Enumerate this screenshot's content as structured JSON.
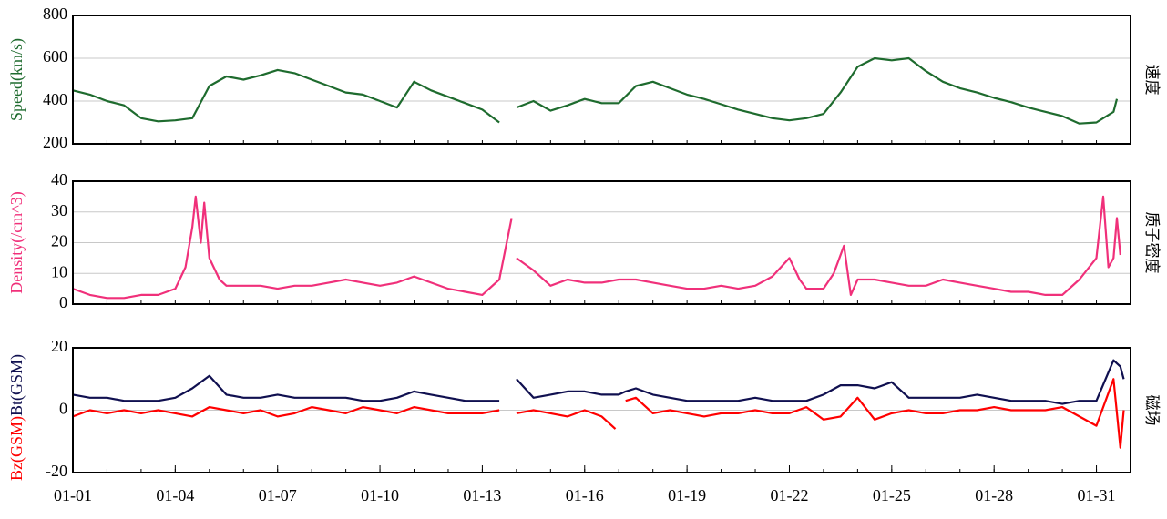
{
  "chart_data": [
    {
      "type": "line",
      "ylabel": "Speed(km/s)",
      "side_label": "速度",
      "color": "#1e6b2e",
      "xlim": [
        1,
        32
      ],
      "ylim": [
        200,
        800
      ],
      "yticks": [
        200,
        400,
        600,
        800
      ],
      "grid": true,
      "x": [
        1,
        1.5,
        2,
        2.5,
        3,
        3.5,
        4,
        4.5,
        5,
        5.5,
        6,
        6.5,
        7,
        7.5,
        8,
        8.5,
        9,
        9.5,
        10,
        10.5,
        11,
        11.5,
        12,
        12.5,
        13,
        13.5,
        13.8,
        14,
        14.5,
        15,
        15.5,
        16,
        16.5,
        17,
        17.5,
        18,
        18.5,
        19,
        19.5,
        20,
        20.5,
        21,
        21.5,
        22,
        22.5,
        23,
        23.5,
        24,
        24.5,
        25,
        25.5,
        26,
        26.5,
        27,
        27.5,
        28,
        28.5,
        29,
        29.5,
        30,
        30.5,
        31,
        31.5,
        31.6
      ],
      "values": [
        450,
        430,
        400,
        380,
        320,
        305,
        310,
        320,
        470,
        515,
        500,
        520,
        545,
        530,
        500,
        470,
        440,
        430,
        400,
        370,
        490,
        450,
        420,
        390,
        360,
        300,
        null,
        370,
        400,
        355,
        380,
        410,
        390,
        390,
        470,
        490,
        460,
        430,
        410,
        385,
        360,
        340,
        320,
        310,
        320,
        340,
        440,
        560,
        600,
        590,
        600,
        540,
        490,
        460,
        440,
        415,
        395,
        370,
        350,
        330,
        295,
        300,
        350,
        410
      ]
    },
    {
      "type": "line",
      "ylabel": "Density(/cm^3)",
      "side_label": "质子密度",
      "color": "#f0307a",
      "xlim": [
        1,
        32
      ],
      "ylim": [
        0,
        40
      ],
      "yticks": [
        0,
        10,
        20,
        30,
        40
      ],
      "grid": true,
      "x": [
        1,
        1.5,
        2,
        2.5,
        3,
        3.5,
        4,
        4.3,
        4.5,
        4.6,
        4.75,
        4.85,
        5,
        5.3,
        5.5,
        6,
        6.5,
        7,
        7.5,
        8,
        8.5,
        9,
        9.5,
        10,
        10.5,
        11,
        11.5,
        12,
        12.5,
        13,
        13.5,
        13.86,
        13.9,
        14,
        14.5,
        15,
        15.5,
        16,
        16.5,
        17,
        17.5,
        18,
        18.5,
        19,
        19.5,
        20,
        20.5,
        21,
        21.5,
        22,
        22.3,
        22.5,
        23,
        23.3,
        23.6,
        23.8,
        24,
        24.5,
        25,
        25.5,
        26,
        26.5,
        27,
        27.5,
        28,
        28.5,
        29,
        29.5,
        30,
        30.5,
        31,
        31.2,
        31.35,
        31.5,
        31.6,
        31.7
      ],
      "values": [
        5,
        3,
        2,
        2,
        3,
        3,
        5,
        12,
        25,
        35,
        20,
        33,
        15,
        8,
        6,
        6,
        6,
        5,
        6,
        6,
        7,
        8,
        7,
        6,
        7,
        9,
        7,
        5,
        4,
        3,
        8,
        28,
        null,
        15,
        11,
        6,
        8,
        7,
        7,
        8,
        8,
        7,
        6,
        5,
        5,
        6,
        5,
        6,
        9,
        15,
        8,
        5,
        5,
        10,
        19,
        3,
        8,
        8,
        7,
        6,
        6,
        8,
        7,
        6,
        5,
        4,
        4,
        3,
        3,
        8,
        15,
        35,
        12,
        15,
        28,
        16
      ]
    },
    {
      "type": "line",
      "side_label": "磁场",
      "xlim": [
        1,
        32
      ],
      "ylim": [
        -20,
        20
      ],
      "yticks": [
        -20,
        0,
        20
      ],
      "grid": true,
      "xticks": [
        {
          "value": 1,
          "label": "01-01"
        },
        {
          "value": 4,
          "label": "01-04"
        },
        {
          "value": 7,
          "label": "01-07"
        },
        {
          "value": 10,
          "label": "01-10"
        },
        {
          "value": 13,
          "label": "01-13"
        },
        {
          "value": 16,
          "label": "01-16"
        },
        {
          "value": 19,
          "label": "01-19"
        },
        {
          "value": 22,
          "label": "01-22"
        },
        {
          "value": 25,
          "label": "01-25"
        },
        {
          "value": 28,
          "label": "01-28"
        },
        {
          "value": 31,
          "label": "01-31"
        }
      ],
      "x": [
        1,
        1.5,
        2,
        2.5,
        3,
        3.5,
        4,
        4.5,
        5,
        5.5,
        6,
        6.5,
        7,
        7.5,
        8,
        8.5,
        9,
        9.5,
        10,
        10.5,
        11,
        11.5,
        12,
        12.5,
        13,
        13.5,
        13.9,
        14,
        14.5,
        15,
        15.5,
        16,
        16.5,
        16.9,
        17,
        17.2,
        17.5,
        18,
        18.5,
        19,
        19.5,
        20,
        20.5,
        21,
        21.5,
        22,
        22.5,
        23,
        23.5,
        24,
        24.5,
        25,
        25.5,
        26,
        26.5,
        27,
        27.5,
        28,
        28.5,
        29,
        29.5,
        30,
        30.5,
        31,
        31.5,
        31.7,
        31.8
      ],
      "series": [
        {
          "name": "Bz(GSM)",
          "color": "#ff0000",
          "values": [
            -2,
            0,
            -1,
            0,
            -1,
            0,
            -1,
            -2,
            1,
            0,
            -1,
            0,
            -2,
            -1,
            1,
            0,
            -1,
            1,
            0,
            -1,
            1,
            0,
            -1,
            -1,
            -1,
            0,
            null,
            -1,
            0,
            -1,
            -2,
            0,
            -2,
            -6,
            null,
            3,
            4,
            -1,
            0,
            -1,
            -2,
            -1,
            -1,
            0,
            -1,
            -1,
            1,
            -3,
            -2,
            4,
            -3,
            -1,
            0,
            -1,
            -1,
            0,
            0,
            1,
            0,
            0,
            0,
            1,
            -2,
            -5,
            10,
            -12,
            0
          ]
        },
        {
          "name": "Bt(GSM)",
          "color": "#101050",
          "values": [
            5,
            4,
            4,
            3,
            3,
            3,
            4,
            7,
            11,
            5,
            4,
            4,
            5,
            4,
            4,
            4,
            4,
            3,
            3,
            4,
            6,
            5,
            4,
            3,
            3,
            3,
            null,
            10,
            4,
            5,
            6,
            6,
            5,
            5,
            5,
            6,
            7,
            5,
            4,
            3,
            3,
            3,
            3,
            4,
            3,
            3,
            3,
            5,
            8,
            8,
            7,
            9,
            4,
            4,
            4,
            4,
            5,
            4,
            3,
            3,
            3,
            2,
            3,
            3,
            16,
            14,
            10
          ]
        }
      ]
    }
  ]
}
